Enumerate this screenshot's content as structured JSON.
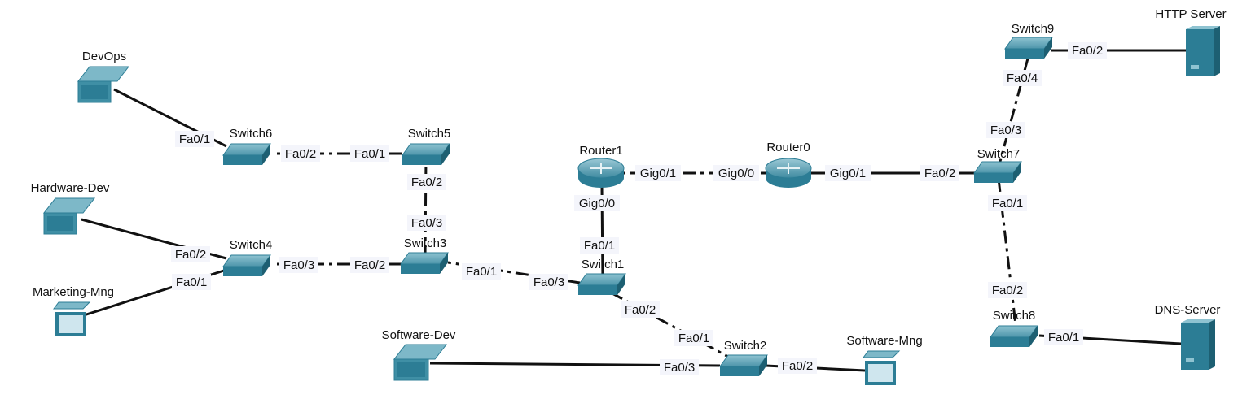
{
  "nodes": {
    "http_server": "HTTP Server",
    "switch9": "Switch9",
    "devops": "DevOps",
    "switch6": "Switch6",
    "switch5": "Switch5",
    "router1": "Router1",
    "router0": "Router0",
    "switch7": "Switch7",
    "hardware_dev": "Hardware-Dev",
    "switch4": "Switch4",
    "switch3": "Switch3",
    "switch1": "Switch1",
    "marketing_mng": "Marketing-Mng",
    "software_dev": "Software-Dev",
    "switch2": "Switch2",
    "software_mng": "Software-Mng",
    "switch8": "Switch8",
    "dns_server": "DNS-Server"
  },
  "ports": {
    "sw9_fa02": "Fa0/2",
    "sw9_fa04": "Fa0/4",
    "sw7_fa03": "Fa0/3",
    "sw7_fa02": "Fa0/2",
    "sw7_fa01": "Fa0/1",
    "r0_gig01": "Gig0/1",
    "r0_gig00": "Gig0/0",
    "r1_gig01": "Gig0/1",
    "r1_gig00": "Gig0/0",
    "sw1_fa01": "Fa0/1",
    "sw1_fa03": "Fa0/3",
    "sw1_fa02": "Fa0/2",
    "sw3_fa01": "Fa0/1",
    "sw3_fa02": "Fa0/2",
    "sw3_fa03": "Fa0/3",
    "sw5_fa02": "Fa0/2",
    "sw5_fa01": "Fa0/1",
    "sw6_fa02": "Fa0/2",
    "sw6_fa01": "Fa0/1",
    "sw4_fa03": "Fa0/3",
    "sw4_fa02": "Fa0/2",
    "sw4_fa01": "Fa0/1",
    "sw2_fa01": "Fa0/1",
    "sw2_fa02": "Fa0/2",
    "sw2_fa03": "Fa0/3",
    "sw8_fa02": "Fa0/2",
    "sw8_fa01": "Fa0/1"
  },
  "colors": {
    "device_top": "#6aa7b8",
    "device_side": "#2c7d95",
    "device_dark": "#1d5f72",
    "link": "#111111",
    "label_bg": "#f4f5fb"
  }
}
